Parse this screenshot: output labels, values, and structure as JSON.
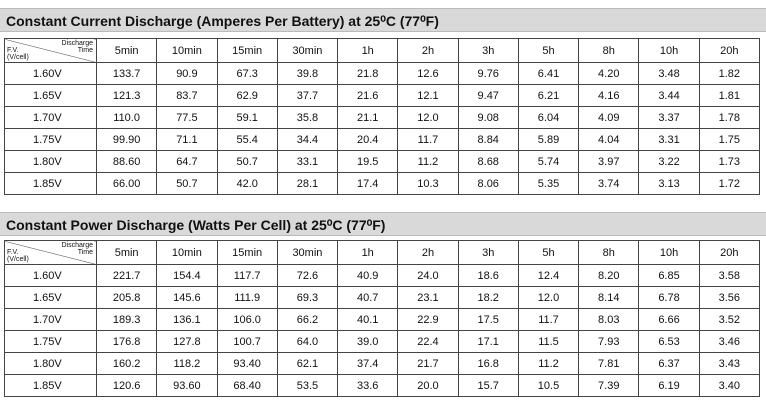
{
  "tables": [
    {
      "title": "Constant Current Discharge (Amperes Per Battery) at 25⁰C (77⁰F)",
      "corner": {
        "top": "Discharge Time",
        "bottom": "F.V. (V/cell)"
      },
      "columns": [
        "5min",
        "10min",
        "15min",
        "30min",
        "1h",
        "2h",
        "3h",
        "5h",
        "8h",
        "10h",
        "20h"
      ],
      "rows": [
        {
          "label": "1.60V",
          "values": [
            "133.7",
            "90.9",
            "67.3",
            "39.8",
            "21.8",
            "12.6",
            "9.76",
            "6.41",
            "4.20",
            "3.48",
            "1.82"
          ]
        },
        {
          "label": "1.65V",
          "values": [
            "121.3",
            "83.7",
            "62.9",
            "37.7",
            "21.6",
            "12.1",
            "9.47",
            "6.21",
            "4.16",
            "3.44",
            "1.81"
          ]
        },
        {
          "label": "1.70V",
          "values": [
            "110.0",
            "77.5",
            "59.1",
            "35.8",
            "21.1",
            "12.0",
            "9.08",
            "6.04",
            "4.09",
            "3.37",
            "1.78"
          ]
        },
        {
          "label": "1.75V",
          "values": [
            "99.90",
            "71.1",
            "55.4",
            "34.4",
            "20.4",
            "11.7",
            "8.84",
            "5.89",
            "4.04",
            "3.31",
            "1.75"
          ]
        },
        {
          "label": "1.80V",
          "values": [
            "88.60",
            "64.7",
            "50.7",
            "33.1",
            "19.5",
            "11.2",
            "8.68",
            "5.74",
            "3.97",
            "3.22",
            "1.73"
          ]
        },
        {
          "label": "1.85V",
          "values": [
            "66.00",
            "50.7",
            "42.0",
            "28.1",
            "17.4",
            "10.3",
            "8.06",
            "5.35",
            "3.74",
            "3.13",
            "1.72"
          ]
        }
      ]
    },
    {
      "title": "Constant Power Discharge (Watts Per Cell) at 25⁰C (77⁰F)",
      "corner": {
        "top": "Discharge Time",
        "bottom": "F.V. (V/cell)"
      },
      "columns": [
        "5min",
        "10min",
        "15min",
        "30min",
        "1h",
        "2h",
        "3h",
        "5h",
        "8h",
        "10h",
        "20h"
      ],
      "rows": [
        {
          "label": "1.60V",
          "values": [
            "221.7",
            "154.4",
            "117.7",
            "72.6",
            "40.9",
            "24.0",
            "18.6",
            "12.4",
            "8.20",
            "6.85",
            "3.58"
          ]
        },
        {
          "label": "1.65V",
          "values": [
            "205.8",
            "145.6",
            "111.9",
            "69.3",
            "40.7",
            "23.1",
            "18.2",
            "12.0",
            "8.14",
            "6.78",
            "3.56"
          ]
        },
        {
          "label": "1.70V",
          "values": [
            "189.3",
            "136.1",
            "106.0",
            "66.2",
            "40.1",
            "22.9",
            "17.5",
            "11.7",
            "8.03",
            "6.66",
            "3.52"
          ]
        },
        {
          "label": "1.75V",
          "values": [
            "176.8",
            "127.8",
            "100.7",
            "64.0",
            "39.0",
            "22.4",
            "17.1",
            "11.5",
            "7.93",
            "6.53",
            "3.46"
          ]
        },
        {
          "label": "1.80V",
          "values": [
            "160.2",
            "118.2",
            "93.40",
            "62.1",
            "37.4",
            "21.7",
            "16.8",
            "11.2",
            "7.81",
            "6.37",
            "3.43"
          ]
        },
        {
          "label": "1.85V",
          "values": [
            "120.6",
            "93.60",
            "68.40",
            "53.5",
            "33.6",
            "20.0",
            "15.7",
            "10.5",
            "7.39",
            "6.19",
            "3.40"
          ]
        }
      ]
    }
  ]
}
